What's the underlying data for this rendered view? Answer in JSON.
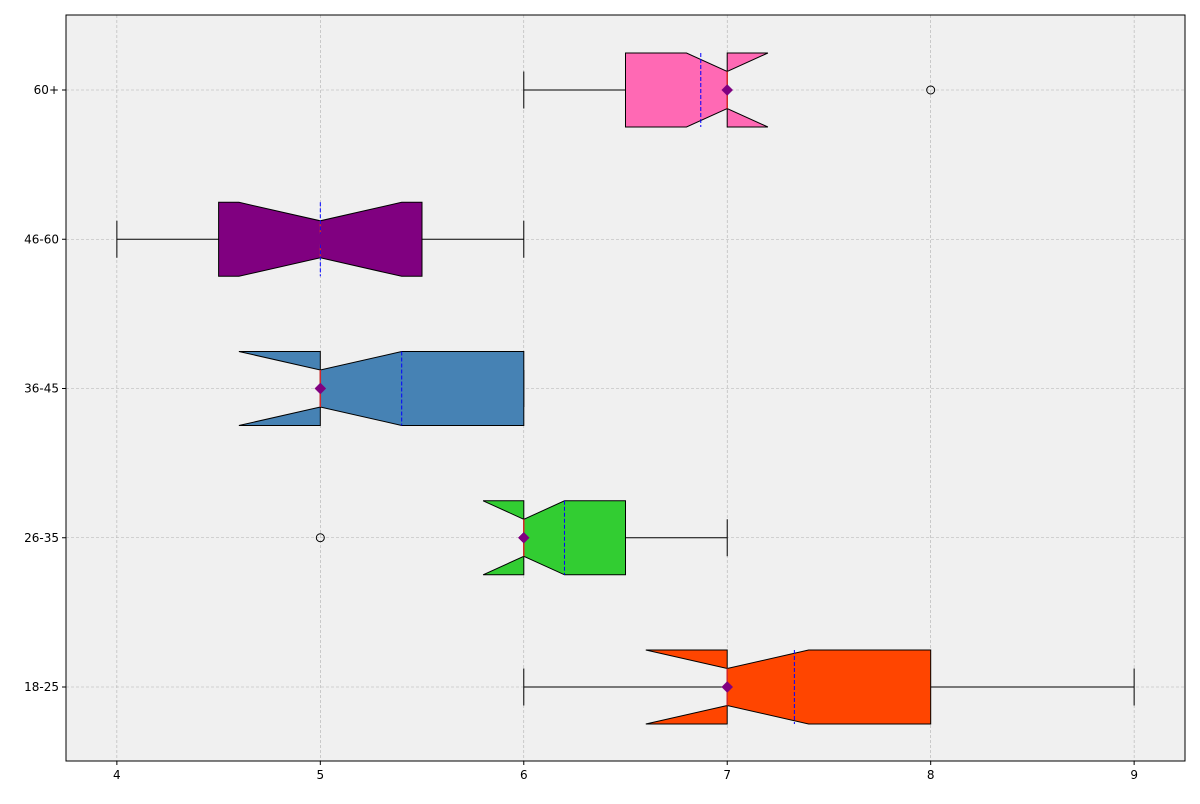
{
  "chart_data": {
    "type": "boxplot",
    "orientation": "horizontal",
    "notched": true,
    "xlim": [
      3.75,
      9.25
    ],
    "x_ticks": [
      4,
      5,
      6,
      7,
      8,
      9
    ],
    "grid": true,
    "colors": {
      "plot_background": "#f0f0f0",
      "median_line": "#d62728",
      "mean_line": "#0000ff",
      "mean_marker": "#800080",
      "whisker": "#000000"
    },
    "categories": [
      "18-25",
      "26-35",
      "36-45",
      "46-60",
      "60+"
    ],
    "boxes": [
      {
        "label": "18-25",
        "color": "#ff4500",
        "whisker_low": 6,
        "q1": 7,
        "median": 7,
        "q3": 8,
        "whisker_high": 9,
        "notch_low": 6.6,
        "notch_high": 7.4,
        "mean": 7.33,
        "outliers": []
      },
      {
        "label": "26-35",
        "color": "#32cd32",
        "whisker_low": 6,
        "q1": 6,
        "median": 6,
        "q3": 6.5,
        "whisker_high": 7,
        "notch_low": 5.8,
        "notch_high": 6.2,
        "mean": 6.2,
        "outliers": [
          5
        ]
      },
      {
        "label": "36-45",
        "color": "#4682b4",
        "whisker_low": 5,
        "q1": 5,
        "median": 5,
        "q3": 6,
        "whisker_high": 6,
        "notch_low": 4.6,
        "notch_high": 5.4,
        "mean": 5.4,
        "outliers": []
      },
      {
        "label": "46-60",
        "color": "#800080",
        "whisker_low": 4,
        "q1": 4.5,
        "median": 5,
        "q3": 5.5,
        "whisker_high": 6,
        "notch_low": 4.6,
        "notch_high": 5.4,
        "mean": 5.0,
        "outliers": []
      },
      {
        "label": "60+",
        "color": "#ff69b4",
        "whisker_low": 6,
        "q1": 6.5,
        "median": 7,
        "q3": 7,
        "whisker_high": 7,
        "notch_low": 6.8,
        "notch_high": 7.2,
        "mean": 6.87,
        "outliers": [
          8
        ]
      }
    ]
  }
}
